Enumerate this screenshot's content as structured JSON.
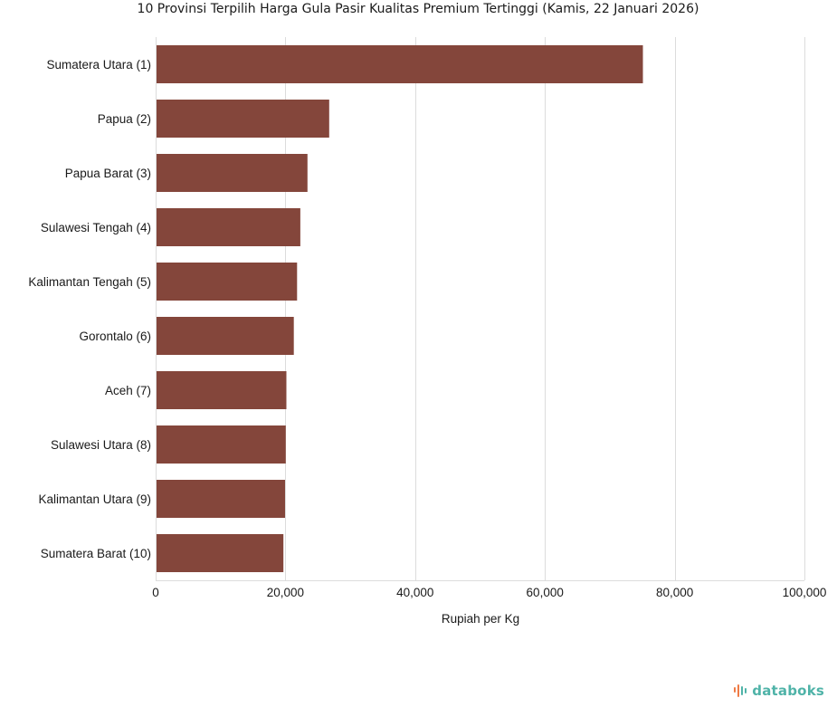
{
  "colors": {
    "bar": "#84463b",
    "grid": "#dcdcdc",
    "brand_teal": "#4fb3a8",
    "brand_orange": "#ef7b45"
  },
  "brand": {
    "name": "databoks",
    "icon": "databoks-logo-icon"
  },
  "chart_data": {
    "type": "bar",
    "orientation": "horizontal",
    "title": "10 Provinsi Terpilih Harga Gula Pasir Kualitas Premium Tertinggi (Kamis, 22 Januari 2026)",
    "xlabel": "Rupiah per Kg",
    "ylabel": "",
    "xlim": [
      0,
      100000
    ],
    "xticks": [
      0,
      20000,
      40000,
      60000,
      80000,
      100000
    ],
    "xtick_labels": [
      "0",
      "20,000",
      "40,000",
      "60,000",
      "80,000",
      "100,000"
    ],
    "grid": true,
    "legend": "none",
    "categories": [
      "Sumatera Utara (1)",
      "Papua (2)",
      "Papua Barat (3)",
      "Sulawesi Tengah (4)",
      "Kalimantan Tengah (5)",
      "Gorontalo (6)",
      "Aceh (7)",
      "Sulawesi Utara (8)",
      "Kalimantan Utara (9)",
      "Sumatera Barat (10)"
    ],
    "values": [
      75100,
      26750,
      23400,
      22300,
      21800,
      21300,
      20150,
      20050,
      19950,
      19700
    ]
  }
}
